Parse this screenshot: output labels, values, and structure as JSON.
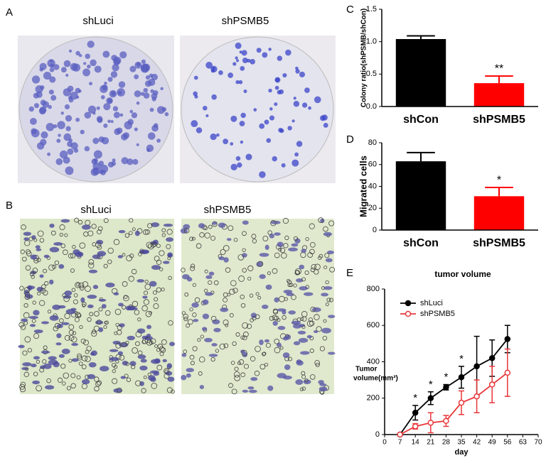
{
  "figure": {
    "panel_a": {
      "label": "A",
      "captions": [
        "shLuci",
        "shPSMB5"
      ]
    },
    "panel_b": {
      "label": "B",
      "captions": [
        "shLuci",
        "shPSMB5"
      ]
    }
  },
  "chart_data": [
    {
      "type": "bar",
      "panel_label": "C",
      "ylabel": "Colony ratio(shPSMB/shCon)",
      "categories": [
        "shCon",
        "shPSMB5"
      ],
      "values": [
        1.04,
        0.36
      ],
      "errors": [
        0.05,
        0.11
      ],
      "colors": [
        "#000000",
        "#ff0000"
      ],
      "significance": [
        null,
        "**"
      ],
      "ylim": [
        0,
        1.5
      ],
      "yticks": [
        {
          "value": 0,
          "label": "0.0"
        },
        0.5,
        {
          "value": 1,
          "label": "1.0"
        },
        1.5
      ]
    },
    {
      "type": "bar",
      "panel_label": "D",
      "ylabel": "Migrated cells",
      "categories": [
        "shCon",
        "shPSMB5"
      ],
      "values": [
        63,
        31
      ],
      "errors": [
        8,
        8
      ],
      "colors": [
        "#000000",
        "#ff0000"
      ],
      "significance": [
        null,
        "*"
      ],
      "ylim": [
        0,
        80
      ],
      "yticks": [
        0,
        20,
        40,
        60,
        80
      ]
    },
    {
      "type": "line",
      "panel_label": "E",
      "title": "tumor volume",
      "xlabel": "day",
      "ylabel": [
        "Tumor",
        "volume(mm³)"
      ],
      "x": [
        7,
        14,
        21,
        28,
        35,
        42,
        49,
        56
      ],
      "series": [
        {
          "name": "shLuci",
          "color": "#000000",
          "marker": "filled",
          "values": [
            0,
            120,
            200,
            260,
            315,
            375,
            420,
            525
          ],
          "errors": [
            0,
            40,
            35,
            15,
            60,
            165,
            100,
            75
          ]
        },
        {
          "name": "shPSMB5",
          "color": "#e8373a",
          "marker": "hollow",
          "values": [
            0,
            45,
            65,
            75,
            175,
            210,
            275,
            340
          ],
          "errors": [
            0,
            15,
            55,
            30,
            65,
            90,
            100,
            130
          ]
        }
      ],
      "significance": [
        null,
        "*",
        "*",
        "*",
        "*",
        null,
        null,
        null
      ],
      "xlim": [
        0,
        70
      ],
      "xticks": [
        0,
        7,
        14,
        21,
        28,
        35,
        42,
        49,
        56,
        63,
        70
      ],
      "ylim": [
        0,
        800
      ],
      "yticks": [
        0,
        200,
        400,
        600,
        800
      ]
    }
  ]
}
